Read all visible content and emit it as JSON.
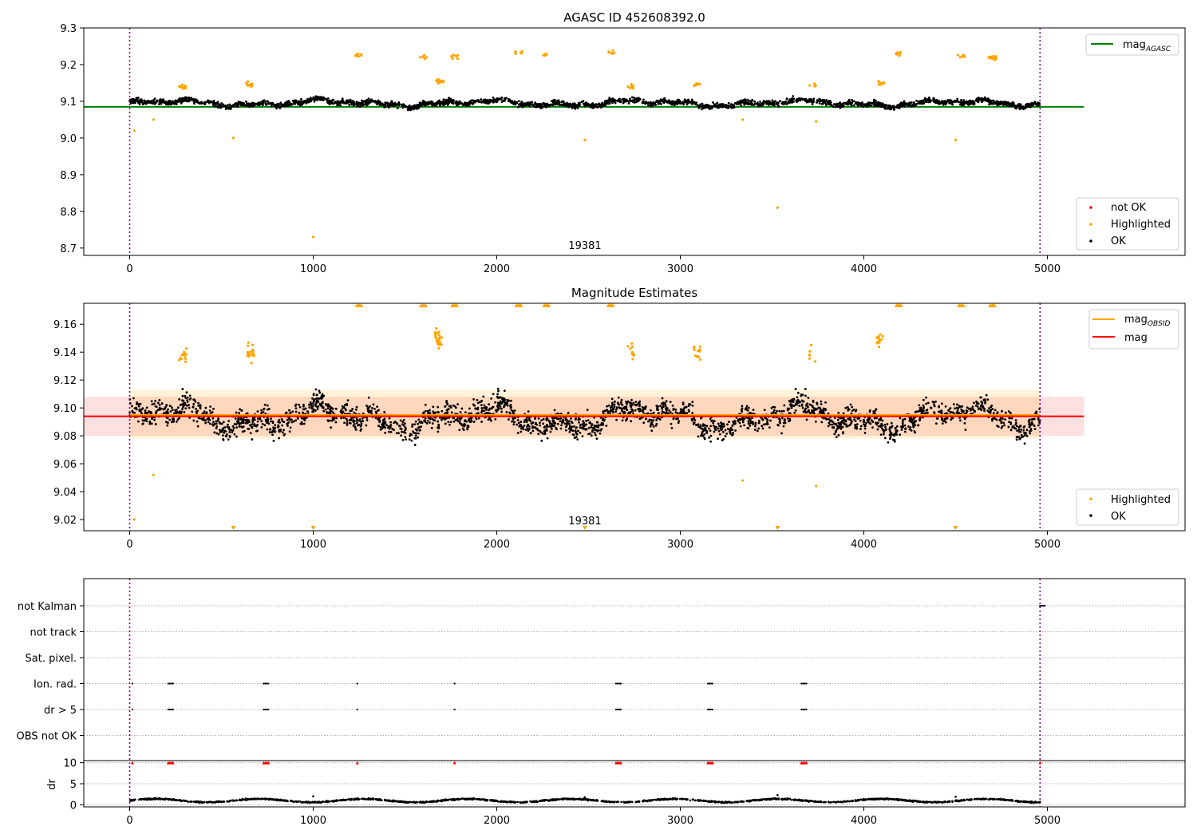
{
  "chart_data": [
    {
      "type": "scatter",
      "title": "AGASC ID 452608392.0",
      "xlim": [
        -250,
        5750
      ],
      "ylim": [
        8.68,
        9.3
      ],
      "xticks": [
        0,
        1000,
        2000,
        3000,
        4000,
        5000
      ],
      "yticks": [
        8.7,
        8.8,
        8.9,
        9.0,
        9.1,
        9.2,
        9.3
      ],
      "vlines": [
        0,
        4960
      ],
      "annotation": {
        "text": "19381",
        "x": 2480,
        "y": 8.71
      },
      "reference_lines": [
        {
          "name": "mag_AGASC",
          "y": 9.085,
          "x": [
            -250,
            5200
          ],
          "color": "#008000"
        }
      ],
      "legend_upper": [
        {
          "label": "mag",
          "sub": "AGASC",
          "color": "#008000"
        }
      ],
      "legend_lower": [
        {
          "label": "not OK",
          "color": "#ff0000"
        },
        {
          "label": "Highlighted",
          "color": "#ffa500"
        },
        {
          "label": "OK",
          "color": "#000000"
        }
      ],
      "ok_band": {
        "start": 0,
        "end": 4960,
        "base": 9.095
      },
      "highlighted_clusters": [
        {
          "x": 290,
          "y": 9.14,
          "n": 12
        },
        {
          "x": 650,
          "y": 9.145,
          "n": 14
        },
        {
          "x": 1250,
          "y": 9.225,
          "n": 10
        },
        {
          "x": 1600,
          "y": 9.22,
          "n": 8
        },
        {
          "x": 1690,
          "y": 9.155,
          "n": 18
        },
        {
          "x": 1770,
          "y": 9.22,
          "n": 8
        },
        {
          "x": 2120,
          "y": 9.235,
          "n": 9
        },
        {
          "x": 2270,
          "y": 9.225,
          "n": 6
        },
        {
          "x": 2620,
          "y": 9.235,
          "n": 6
        },
        {
          "x": 2730,
          "y": 9.14,
          "n": 8
        },
        {
          "x": 3090,
          "y": 9.145,
          "n": 8
        },
        {
          "x": 3720,
          "y": 9.145,
          "n": 5
        },
        {
          "x": 4090,
          "y": 9.15,
          "n": 10
        },
        {
          "x": 4190,
          "y": 9.23,
          "n": 8
        },
        {
          "x": 4530,
          "y": 9.225,
          "n": 8
        },
        {
          "x": 4700,
          "y": 9.22,
          "n": 14
        }
      ],
      "highlighted_points": [
        {
          "x": 25,
          "y": 9.02
        },
        {
          "x": 130,
          "y": 9.05
        },
        {
          "x": 565,
          "y": 9.0
        },
        {
          "x": 1000,
          "y": 8.73
        },
        {
          "x": 2480,
          "y": 8.995
        },
        {
          "x": 3340,
          "y": 9.05
        },
        {
          "x": 3530,
          "y": 8.81
        },
        {
          "x": 3740,
          "y": 9.045
        },
        {
          "x": 4500,
          "y": 8.995
        }
      ]
    },
    {
      "type": "scatter",
      "title": "Magnitude Estimates",
      "xlim": [
        -250,
        5750
      ],
      "ylim": [
        9.012,
        9.175
      ],
      "xticks": [
        0,
        1000,
        2000,
        3000,
        4000,
        5000
      ],
      "yticks": [
        9.02,
        9.04,
        9.06,
        9.08,
        9.1,
        9.12,
        9.14,
        9.16
      ],
      "vlines": [
        0,
        4960
      ],
      "annotation": {
        "text": "19381",
        "x": 2480,
        "y": 9.017
      },
      "reference_lines": [
        {
          "name": "mag_OBSID",
          "y": 9.095,
          "x": [
            0,
            4960
          ],
          "color": "#ffa500"
        },
        {
          "name": "mag",
          "y": 9.094,
          "x": [
            -250,
            5200
          ],
          "color": "#ff0000"
        }
      ],
      "bands": [
        {
          "y0": 9.08,
          "y1": 9.108,
          "x": [
            -250,
            5200
          ],
          "color": "#ff0000",
          "opacity": 0.12
        },
        {
          "y0": 9.078,
          "y1": 9.113,
          "x": [
            0,
            4960
          ],
          "color": "#ffa500",
          "opacity": 0.15
        }
      ],
      "legend_upper": [
        {
          "label": "mag",
          "sub": "OBSID",
          "color": "#ffa500"
        },
        {
          "label": "mag",
          "sub": "",
          "color": "#ff0000"
        }
      ],
      "legend_lower": [
        {
          "label": "Highlighted",
          "color": "#ffa500"
        },
        {
          "label": "OK",
          "color": "#000000"
        }
      ],
      "ok_band": {
        "start": 0,
        "end": 4960,
        "base": 9.093
      },
      "highlighted_clusters": [
        {
          "x": 290,
          "y": 9.138,
          "n": 14
        },
        {
          "x": 660,
          "y": 9.14,
          "n": 20
        },
        {
          "x": 1680,
          "y": 9.15,
          "n": 30
        },
        {
          "x": 2730,
          "y": 9.14,
          "n": 10
        },
        {
          "x": 3090,
          "y": 9.14,
          "n": 12
        },
        {
          "x": 3720,
          "y": 9.14,
          "n": 6
        },
        {
          "x": 4090,
          "y": 9.148,
          "n": 14
        }
      ],
      "highlighted_points": [
        {
          "x": 25,
          "y": 9.02
        },
        {
          "x": 130,
          "y": 9.052
        },
        {
          "x": 3340,
          "y": 9.048
        },
        {
          "x": 3740,
          "y": 9.044
        }
      ],
      "offscale_high": [
        1250,
        1600,
        1770,
        2120,
        2270,
        2620,
        4190,
        4530,
        4700
      ],
      "offscale_low": [
        565,
        1000,
        2480,
        3530,
        4500
      ]
    },
    {
      "type": "scatter",
      "title": "",
      "xlim": [
        -250,
        5750
      ],
      "xticks": [
        0,
        1000,
        2000,
        3000,
        4000,
        5000
      ],
      "vlines": [
        0,
        4960
      ],
      "flag_rows": [
        "not Kalman",
        "not track",
        "Sat. pixel.",
        "Ion. rad.",
        "dr > 5",
        "OBS not OK"
      ],
      "flag_events": [
        {
          "x": 15,
          "rows": [
            "Ion. rad.",
            "dr > 5"
          ]
        },
        {
          "x": 210,
          "rows": [
            "Ion. rad.",
            "dr > 5"
          ]
        },
        {
          "x": 730,
          "rows": [
            "Ion. rad.",
            "dr > 5"
          ]
        },
        {
          "x": 1240,
          "rows": [
            "Ion. rad.",
            "dr > 5"
          ]
        },
        {
          "x": 1770,
          "rows": [
            "Ion. rad.",
            "dr > 5"
          ]
        },
        {
          "x": 2650,
          "rows": [
            "Ion. rad.",
            "dr > 5"
          ]
        },
        {
          "x": 3150,
          "rows": [
            "Ion. rad.",
            "dr > 5"
          ]
        },
        {
          "x": 3660,
          "rows": [
            "Ion. rad.",
            "dr > 5"
          ]
        },
        {
          "x": 4960,
          "rows": [
            "not Kalman"
          ]
        }
      ],
      "dr_panel": {
        "ylabel": "dr",
        "ylim": [
          -0.5,
          10.5
        ],
        "yticks": [
          0,
          5,
          10
        ],
        "baseline": 1.0,
        "spikes": [
          {
            "x": 1000,
            "y": 2.0
          },
          {
            "x": 2480,
            "y": 1.8
          },
          {
            "x": 3530,
            "y": 2.3
          },
          {
            "x": 4500,
            "y": 1.9
          }
        ],
        "clipped_markers": [
          15,
          210,
          730,
          1240,
          1770,
          2650,
          3150,
          3660,
          4960
        ]
      }
    }
  ]
}
